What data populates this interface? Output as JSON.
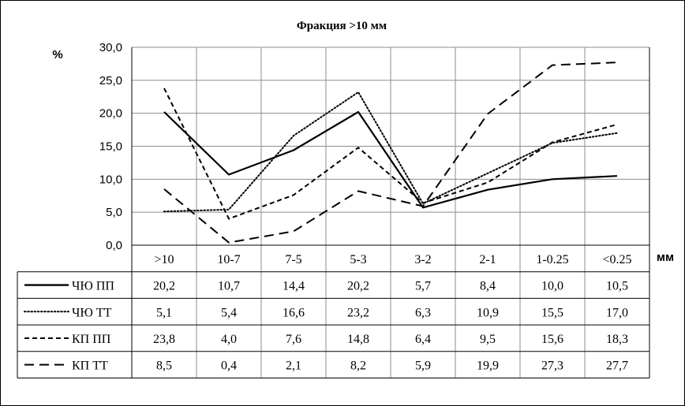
{
  "chart_data": {
    "type": "line",
    "title": "Фракция >10 мм",
    "ylabel": "%",
    "xunit": "мм",
    "ylim": [
      0,
      30
    ],
    "ytick_values": [
      0,
      5,
      10,
      15,
      20,
      25,
      30
    ],
    "ytick_labels": [
      "0,0",
      "5,0",
      "10,0",
      "15,0",
      "20,0",
      "25,0",
      "30,0"
    ],
    "grid": true,
    "legend": "data-table",
    "categories": [
      ">10",
      "10-7",
      "7-5",
      "5-3",
      "3-2",
      "2-1",
      "1-0.25",
      "<0.25"
    ],
    "series": [
      {
        "name": "ЧЮ ПП",
        "style": "solid",
        "values": [
          20.2,
          10.7,
          14.4,
          20.2,
          5.7,
          8.4,
          10.0,
          10.5
        ],
        "labels": [
          "20,2",
          "10,7",
          "14,4",
          "20,2",
          "5,7",
          "8,4",
          "10,0",
          "10,5"
        ]
      },
      {
        "name": "ЧЮ ТТ",
        "style": "dotted",
        "values": [
          5.1,
          5.4,
          16.6,
          23.2,
          6.3,
          10.9,
          15.5,
          17.0
        ],
        "labels": [
          "5,1",
          "5,4",
          "16,6",
          "23,2",
          "6,3",
          "10,9",
          "15,5",
          "17,0"
        ]
      },
      {
        "name": "КП ПП",
        "style": "dashed",
        "values": [
          23.8,
          4.0,
          7.6,
          14.8,
          6.4,
          9.5,
          15.6,
          18.3
        ],
        "labels": [
          "23,8",
          "4,0",
          "7,6",
          "14,8",
          "6,4",
          "9,5",
          "15,6",
          "18,3"
        ]
      },
      {
        "name": "КП ТТ",
        "style": "long-dashed",
        "values": [
          8.5,
          0.4,
          2.1,
          8.2,
          5.9,
          19.9,
          27.3,
          27.7
        ],
        "labels": [
          "8,5",
          "0,4",
          "2,1",
          "8,2",
          "5,9",
          "19,9",
          "27,3",
          "27,7"
        ]
      }
    ]
  }
}
